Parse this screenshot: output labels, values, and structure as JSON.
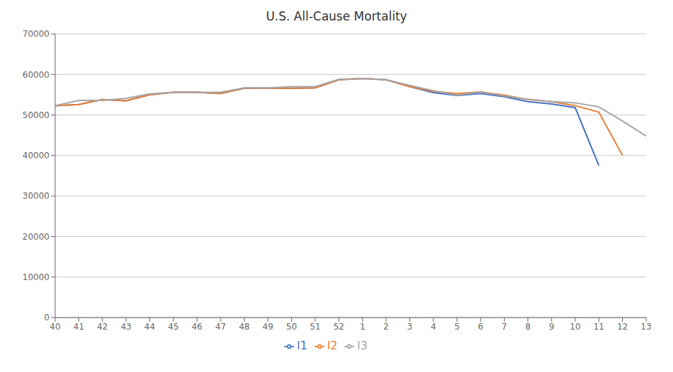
{
  "chart_data": {
    "type": "line",
    "title": "U.S. All-Cause Mortality",
    "categories": [
      "40",
      "41",
      "42",
      "43",
      "44",
      "45",
      "46",
      "47",
      "48",
      "49",
      "50",
      "51",
      "52",
      "1",
      "2",
      "3",
      "4",
      "5",
      "6",
      "7",
      "8",
      "9",
      "10",
      "11",
      "12",
      "13"
    ],
    "series": [
      {
        "name": "l1",
        "color": "#4472C4",
        "values": [
          52300,
          52600,
          53800,
          53500,
          55000,
          55600,
          55600,
          55300,
          56600,
          56600,
          56600,
          56700,
          58700,
          59000,
          58700,
          57000,
          55500,
          54800,
          55300,
          54500,
          53300,
          52700,
          51800,
          37500,
          null,
          null
        ]
      },
      {
        "name": "l2",
        "color": "#ED7D31",
        "values": [
          52300,
          52600,
          53800,
          53500,
          55000,
          55600,
          55600,
          55300,
          56600,
          56600,
          56600,
          56700,
          58700,
          59000,
          58700,
          57000,
          55800,
          55300,
          55700,
          54900,
          53800,
          53300,
          52300,
          50700,
          40000,
          null
        ]
      },
      {
        "name": "l3",
        "color": "#A5A5A5",
        "values": [
          52300,
          53600,
          53600,
          54100,
          55200,
          55600,
          55600,
          55600,
          56700,
          56700,
          57000,
          57000,
          58800,
          59000,
          58700,
          57300,
          56000,
          54900,
          55700,
          54700,
          53900,
          53300,
          53000,
          52000,
          48500,
          44800
        ]
      }
    ],
    "ylim": [
      0,
      70000
    ],
    "yticks": [
      0,
      10000,
      20000,
      30000,
      40000,
      50000,
      60000,
      70000
    ],
    "grid": true,
    "legend": "bottom"
  }
}
